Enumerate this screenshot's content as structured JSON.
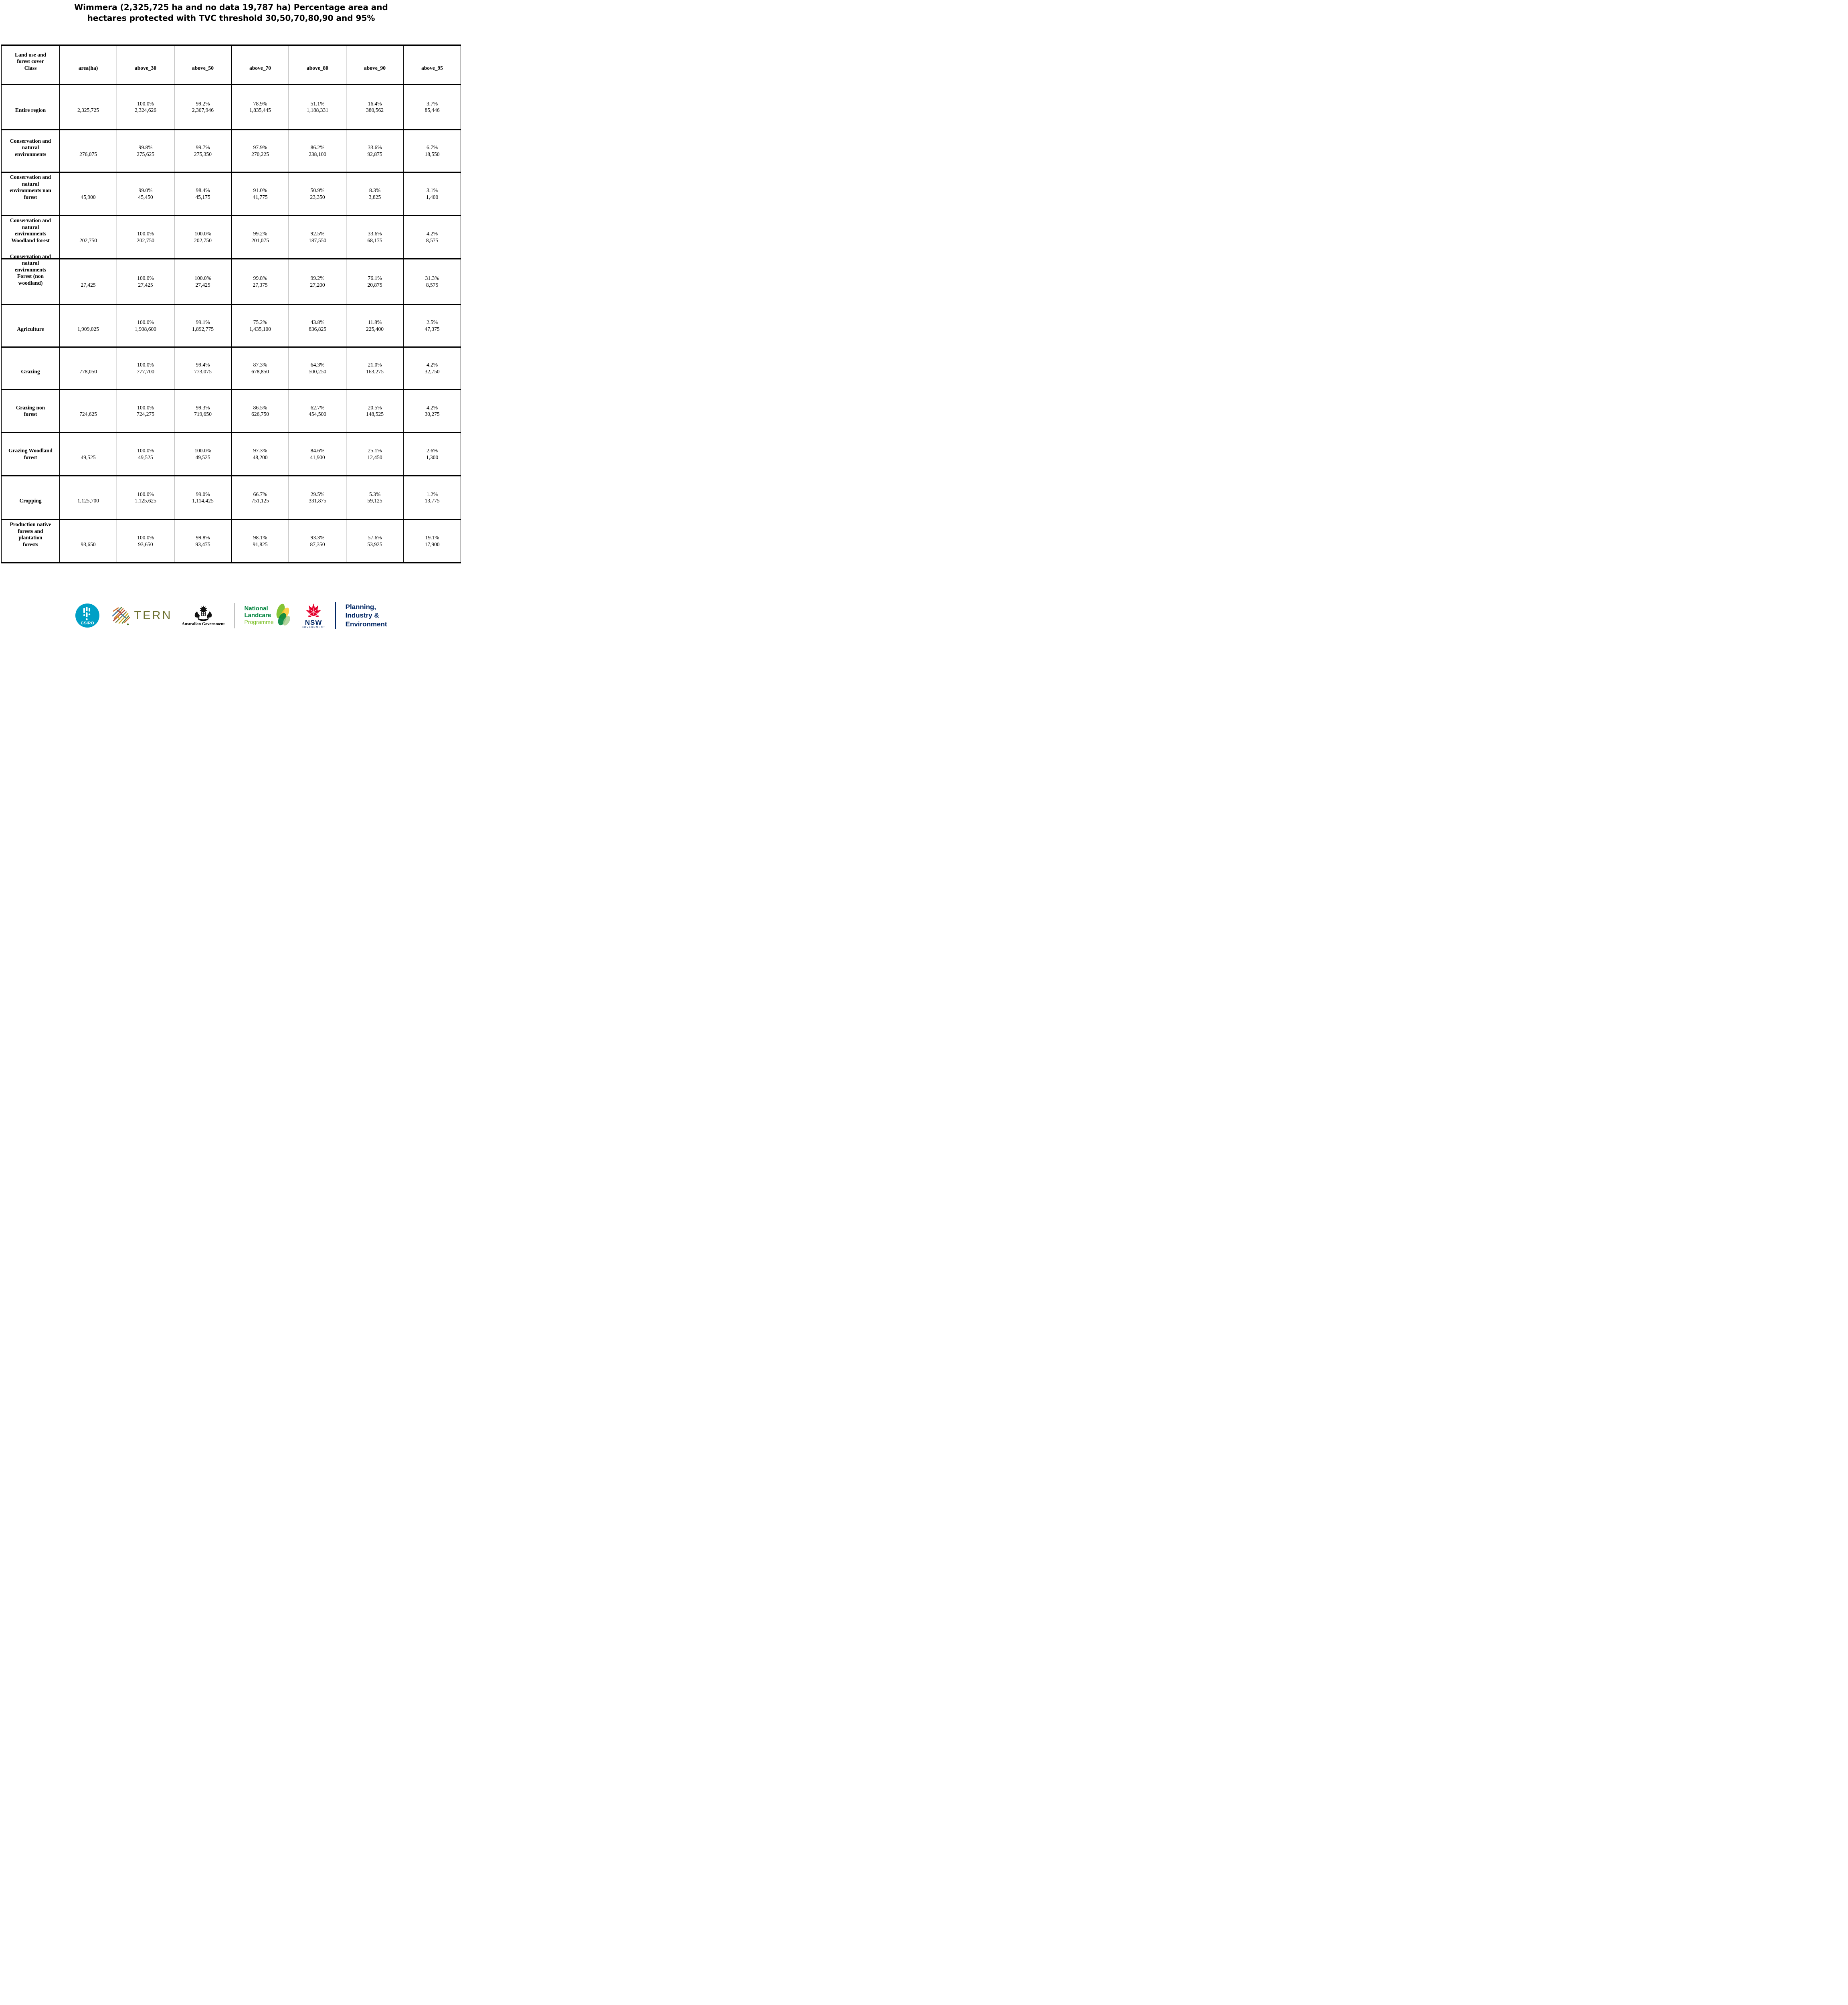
{
  "title": {
    "line1": "Wimmera (2,325,725 ha and no data 19,787 ha) Percentage area and",
    "line2": "hectares protected with TVC threshold 30,50,70,80,90 and 95%"
  },
  "table": {
    "header": [
      {
        "lines": [
          "Land use and",
          "forest cover",
          "Class"
        ]
      },
      {
        "lines": [
          "area(ha)"
        ]
      },
      {
        "lines": [
          "above_30"
        ]
      },
      {
        "lines": [
          "above_50"
        ]
      },
      {
        "lines": [
          "above_70"
        ]
      },
      {
        "lines": [
          "above_80"
        ]
      },
      {
        "lines": [
          "above_90"
        ]
      },
      {
        "lines": [
          "above_95"
        ]
      }
    ],
    "rows": [
      {
        "label_lines": [
          "Entire region"
        ],
        "area": "2,325,725",
        "cells": [
          {
            "pct": "100.0%",
            "ha": "2,324,626"
          },
          {
            "pct": "99.2%",
            "ha": "2,307,946"
          },
          {
            "pct": "78.9%",
            "ha": "1,835,445"
          },
          {
            "pct": "51.1%",
            "ha": "1,188,331"
          },
          {
            "pct": "16.4%",
            "ha": "380,562"
          },
          {
            "pct": "3.7%",
            "ha": "85,446"
          }
        ]
      },
      {
        "label_lines": [
          "Conservation and",
          "natural",
          "environments"
        ],
        "area": "276,075",
        "cells": [
          {
            "pct": "99.8%",
            "ha": "275,625"
          },
          {
            "pct": "99.7%",
            "ha": "275,350"
          },
          {
            "pct": "97.9%",
            "ha": "270,225"
          },
          {
            "pct": "86.2%",
            "ha": "238,100"
          },
          {
            "pct": "33.6%",
            "ha": "92,875"
          },
          {
            "pct": "6.7%",
            "ha": "18,550"
          }
        ]
      },
      {
        "label_lines": [
          "Conservation and",
          "natural",
          "environments non",
          "forest"
        ],
        "area": "45,900",
        "cells": [
          {
            "pct": "99.0%",
            "ha": "45,450"
          },
          {
            "pct": "98.4%",
            "ha": "45,175"
          },
          {
            "pct": "91.0%",
            "ha": "41,775"
          },
          {
            "pct": "50.9%",
            "ha": "23,350"
          },
          {
            "pct": "8.3%",
            "ha": "3,825"
          },
          {
            "pct": "3.1%",
            "ha": "1,400"
          }
        ]
      },
      {
        "label_lines": [
          "Conservation and",
          "natural",
          "environments",
          "Woodland forest"
        ],
        "area": "202,750",
        "cells": [
          {
            "pct": "100.0%",
            "ha": "202,750"
          },
          {
            "pct": "100.0%",
            "ha": "202,750"
          },
          {
            "pct": "99.2%",
            "ha": "201,075"
          },
          {
            "pct": "92.5%",
            "ha": "187,550"
          },
          {
            "pct": "33.6%",
            "ha": "68,175"
          },
          {
            "pct": "4.2%",
            "ha": "8,575"
          }
        ]
      },
      {
        "label_lines": [
          "Conservation and",
          "natural",
          "environments",
          "Forest (non",
          "woodland)"
        ],
        "area": "27,425",
        "cells": [
          {
            "pct": "100.0%",
            "ha": "27,425"
          },
          {
            "pct": "100.0%",
            "ha": "27,425"
          },
          {
            "pct": "99.8%",
            "ha": "27,375"
          },
          {
            "pct": "99.2%",
            "ha": "27,200"
          },
          {
            "pct": "76.1%",
            "ha": "20,875"
          },
          {
            "pct": "31.3%",
            "ha": "8,575"
          }
        ]
      },
      {
        "label_lines": [
          "Agriculture"
        ],
        "area": "1,909,025",
        "cells": [
          {
            "pct": "100.0%",
            "ha": "1,908,600"
          },
          {
            "pct": "99.1%",
            "ha": "1,892,775"
          },
          {
            "pct": "75.2%",
            "ha": "1,435,100"
          },
          {
            "pct": "43.8%",
            "ha": "836,825"
          },
          {
            "pct": "11.8%",
            "ha": "225,400"
          },
          {
            "pct": "2.5%",
            "ha": "47,375"
          }
        ]
      },
      {
        "label_lines": [
          "Grazing"
        ],
        "area": "778,050",
        "cells": [
          {
            "pct": "100.0%",
            "ha": "777,700"
          },
          {
            "pct": "99.4%",
            "ha": "773,075"
          },
          {
            "pct": "87.3%",
            "ha": "678,850"
          },
          {
            "pct": "64.3%",
            "ha": "500,250"
          },
          {
            "pct": "21.0%",
            "ha": "163,275"
          },
          {
            "pct": "4.2%",
            "ha": "32,750"
          }
        ]
      },
      {
        "label_lines": [
          "Grazing non",
          "forest"
        ],
        "area": "724,625",
        "cells": [
          {
            "pct": "100.0%",
            "ha": "724,275"
          },
          {
            "pct": "99.3%",
            "ha": "719,650"
          },
          {
            "pct": "86.5%",
            "ha": "626,750"
          },
          {
            "pct": "62.7%",
            "ha": "454,500"
          },
          {
            "pct": "20.5%",
            "ha": "148,525"
          },
          {
            "pct": "4.2%",
            "ha": "30,275"
          }
        ]
      },
      {
        "label_lines": [
          "Grazing Woodland",
          "forest"
        ],
        "area": "49,525",
        "cells": [
          {
            "pct": "100.0%",
            "ha": "49,525"
          },
          {
            "pct": "100.0%",
            "ha": "49,525"
          },
          {
            "pct": "97.3%",
            "ha": "48,200"
          },
          {
            "pct": "84.6%",
            "ha": "41,900"
          },
          {
            "pct": "25.1%",
            "ha": "12,450"
          },
          {
            "pct": "2.6%",
            "ha": "1,300"
          }
        ]
      },
      {
        "label_lines": [
          "Cropping"
        ],
        "area": "1,125,700",
        "cells": [
          {
            "pct": "100.0%",
            "ha": "1,125,625"
          },
          {
            "pct": "99.0%",
            "ha": "1,114,425"
          },
          {
            "pct": "66.7%",
            "ha": "751,125"
          },
          {
            "pct": "29.5%",
            "ha": "331,875"
          },
          {
            "pct": "5.3%",
            "ha": "59,125"
          },
          {
            "pct": "1.2%",
            "ha": "13,775"
          }
        ]
      },
      {
        "label_lines": [
          "Production native",
          "forests and",
          "plantation",
          "forests"
        ],
        "area": "93,650",
        "cells": [
          {
            "pct": "100.0%",
            "ha": "93,650"
          },
          {
            "pct": "99.8%",
            "ha": "93,475"
          },
          {
            "pct": "98.1%",
            "ha": "91,825"
          },
          {
            "pct": "93.3%",
            "ha": "87,350"
          },
          {
            "pct": "57.6%",
            "ha": "53,925"
          },
          {
            "pct": "19.1%",
            "ha": "17,900"
          }
        ]
      }
    ]
  },
  "chart_data": {
    "type": "table",
    "title": "Wimmera (2,325,725 ha and no data 19,787 ha) Percentage area and hectares protected with TVC threshold 30,50,70,80,90 and 95%",
    "columns": [
      "Land use and forest cover Class",
      "area(ha)",
      "above_30 %",
      "above_30 ha",
      "above_50 %",
      "above_50 ha",
      "above_70 %",
      "above_70 ha",
      "above_80 %",
      "above_80 ha",
      "above_90 %",
      "above_90 ha",
      "above_95 %",
      "above_95 ha"
    ],
    "rows": [
      [
        "Entire region",
        2325725,
        100.0,
        2324626,
        99.2,
        2307946,
        78.9,
        1835445,
        51.1,
        1188331,
        16.4,
        380562,
        3.7,
        85446
      ],
      [
        "Conservation and natural environments",
        276075,
        99.8,
        275625,
        99.7,
        275350,
        97.9,
        270225,
        86.2,
        238100,
        33.6,
        92875,
        6.7,
        18550
      ],
      [
        "Conservation and natural environments non forest",
        45900,
        99.0,
        45450,
        98.4,
        45175,
        91.0,
        41775,
        50.9,
        23350,
        8.3,
        3825,
        3.1,
        1400
      ],
      [
        "Conservation and natural environments Woodland forest",
        202750,
        100.0,
        202750,
        100.0,
        202750,
        99.2,
        201075,
        92.5,
        187550,
        33.6,
        68175,
        4.2,
        8575
      ],
      [
        "Conservation and natural environments Forest (non woodland)",
        27425,
        100.0,
        27425,
        100.0,
        27425,
        99.8,
        27375,
        99.2,
        27200,
        76.1,
        20875,
        31.3,
        8575
      ],
      [
        "Agriculture",
        1909025,
        100.0,
        1908600,
        99.1,
        1892775,
        75.2,
        1435100,
        43.8,
        836825,
        11.8,
        225400,
        2.5,
        47375
      ],
      [
        "Grazing",
        778050,
        100.0,
        777700,
        99.4,
        773075,
        87.3,
        678850,
        64.3,
        500250,
        21.0,
        163275,
        4.2,
        32750
      ],
      [
        "Grazing non forest",
        724625,
        100.0,
        724275,
        99.3,
        719650,
        86.5,
        626750,
        62.7,
        454500,
        20.5,
        148525,
        4.2,
        30275
      ],
      [
        "Grazing Woodland forest",
        49525,
        100.0,
        49525,
        100.0,
        49525,
        97.3,
        48200,
        84.6,
        41900,
        25.1,
        12450,
        2.6,
        1300
      ],
      [
        "Cropping",
        1125700,
        100.0,
        1125625,
        99.0,
        1114425,
        66.7,
        751125,
        29.5,
        331875,
        5.3,
        59125,
        1.2,
        13775
      ],
      [
        "Production native forests and plantation forests",
        93650,
        100.0,
        93650,
        99.8,
        93475,
        98.1,
        91825,
        93.3,
        87350,
        57.6,
        53925,
        19.1,
        17900
      ]
    ]
  },
  "footer": {
    "csiro": {
      "label": "CSIRO"
    },
    "tern": {
      "label": "TERN"
    },
    "australian_government": {
      "label": "Australian Government"
    },
    "landcare": {
      "lines": [
        "National",
        "Landcare",
        "Programme"
      ]
    },
    "nsw": {
      "label": "NSW",
      "sublabel": "GOVERNMENT"
    },
    "pie": {
      "lines": [
        "Planning,",
        "Industry &",
        "Environment"
      ]
    },
    "colors": {
      "csiro_teal": "#00a0c6",
      "tern_olive": "#6f7233",
      "landcare_green": "#00843d",
      "landcare_light_green": "#78be20",
      "landcare_yellow": "#ffc72c",
      "nsw_red": "#e4002b",
      "nsw_navy": "#002664"
    }
  }
}
